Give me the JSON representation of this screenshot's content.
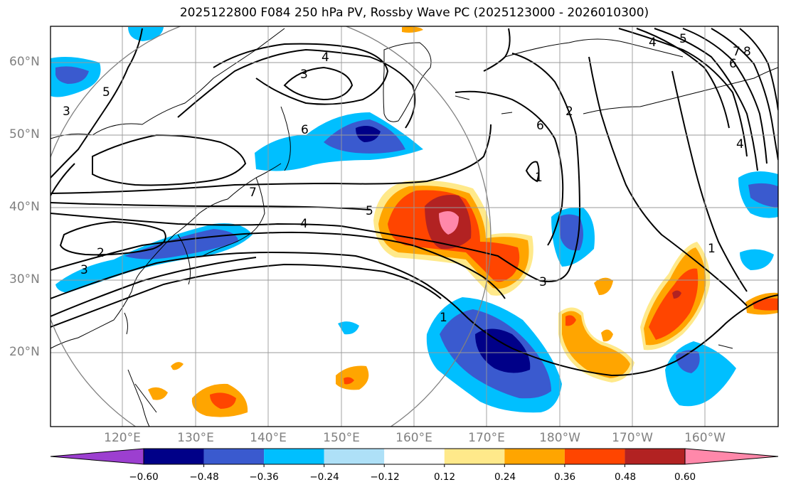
{
  "title": "2025122800 F084 250 hPa PV, Rossby Wave PC (2025123000 - 2026010300)",
  "lat_labels": [
    "60°N",
    "50°N",
    "40°N",
    "30°N",
    "20°N"
  ],
  "lon_labels": [
    "120°E",
    "130°E",
    "140°E",
    "150°E",
    "160°E",
    "170°E",
    "180°W",
    "170°W",
    "160°W"
  ],
  "colorbar": {
    "labels": [
      "−0.60",
      "−0.48",
      "−0.36",
      "−0.24",
      "−0.12",
      "0.12",
      "0.24",
      "0.36",
      "0.48",
      "0.60"
    ],
    "colors": [
      "#9c3fd0",
      "#000088",
      "#3a5acf",
      "#00bfff",
      "#aee0f7",
      "#ffffff",
      "#ffe98a",
      "#ffa500",
      "#ff4500",
      "#b22222",
      "#ff88aa"
    ]
  },
  "contour_labels": [
    "4",
    "3",
    "5",
    "6",
    "7",
    "5",
    "4",
    "2",
    "3",
    "3",
    "1",
    "2",
    "6",
    "1",
    "3",
    "4",
    "5",
    "6",
    "7",
    "8",
    "4",
    "1"
  ],
  "colors": {
    "grid": "#999999",
    "coast": "#000000",
    "contour": "#000000",
    "circle": "#808080"
  }
}
